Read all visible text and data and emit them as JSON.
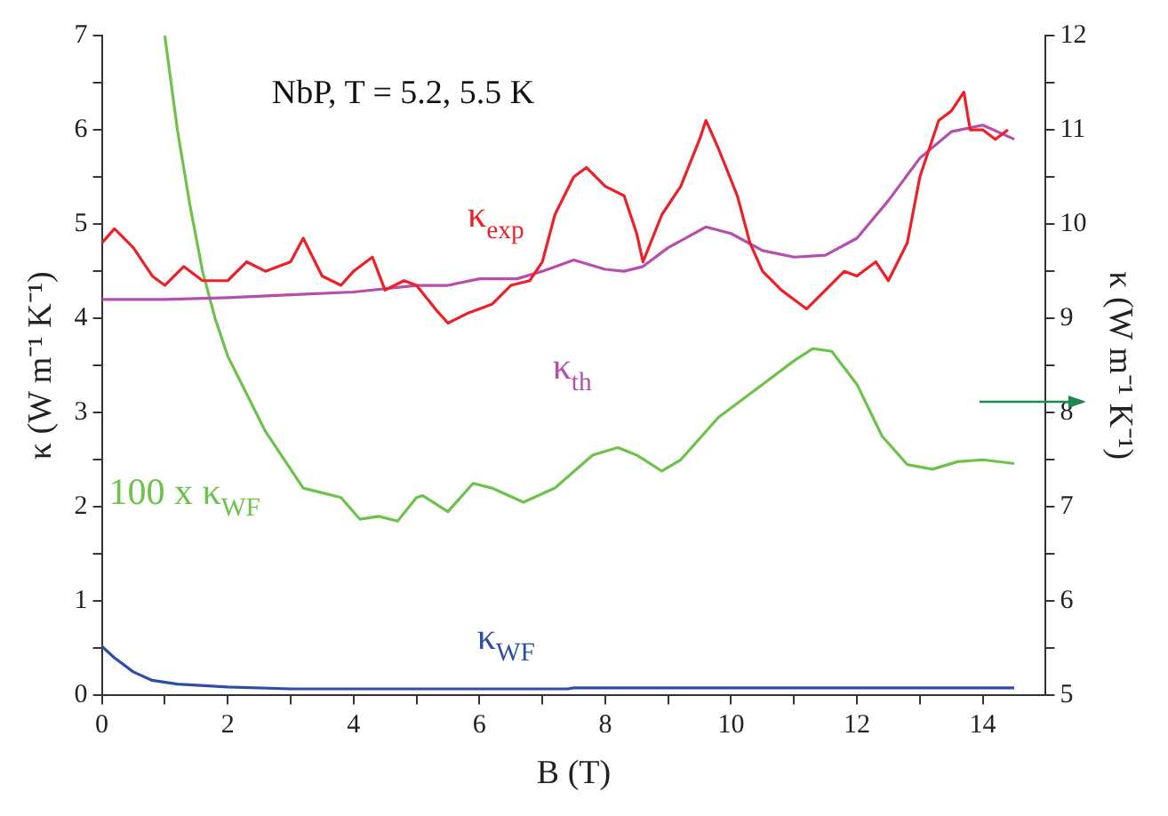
{
  "chart_data": {
    "type": "line",
    "title": "NbP, T = 5.2, 5.5 K",
    "xlabel": "B (T)",
    "ylabel": "κ (W m⁻¹ K⁻¹)",
    "y2label": "κ (W m⁻¹ K⁻¹)",
    "xlim": [
      0,
      15
    ],
    "xticks": [
      0,
      {
        "value": 1,
        "label": null
      },
      2,
      {
        "value": 3,
        "label": null
      },
      4,
      {
        "value": 5,
        "label": null
      },
      6,
      {
        "value": 7,
        "label": null
      },
      8,
      {
        "value": 9,
        "label": null
      },
      10,
      {
        "value": 11,
        "label": null
      },
      12,
      {
        "value": 13,
        "label": null
      },
      14
    ],
    "ylim": [
      0,
      7
    ],
    "yticks": [
      0,
      {
        "value": 0.5,
        "label": null
      },
      1,
      {
        "value": 1.5,
        "label": null
      },
      2,
      {
        "value": 2.5,
        "label": null
      },
      3,
      {
        "value": 3.5,
        "label": null
      },
      4,
      {
        "value": 4.5,
        "label": null
      },
      5,
      {
        "value": 5.5,
        "label": null
      },
      6,
      {
        "value": 6.5,
        "label": null
      },
      7
    ],
    "y2lim": [
      5,
      12
    ],
    "y2ticks": [
      5,
      {
        "value": 5.5,
        "label": null
      },
      6,
      {
        "value": 6.5,
        "label": null
      },
      7,
      {
        "value": 7.5,
        "label": null
      },
      8,
      {
        "value": 8.5,
        "label": null
      },
      9,
      {
        "value": 9.5,
        "label": null
      },
      10,
      {
        "value": 10.5,
        "label": null
      },
      11,
      {
        "value": 11.5,
        "label": null
      },
      12
    ],
    "grid": false,
    "legend": false,
    "marker": "none",
    "line_style": "solid",
    "series": [
      {
        "name": "κ$_{exp}$",
        "color": "#ee2027",
        "x": [
          0,
          0.2,
          0.5,
          0.8,
          1.0,
          1.3,
          1.6,
          2.0,
          2.3,
          2.6,
          3.0,
          3.2,
          3.5,
          3.8,
          4.0,
          4.3,
          4.5,
          4.8,
          5.0,
          5.3,
          5.5,
          5.8,
          6.2,
          6.5,
          6.8,
          7.0,
          7.2,
          7.5,
          7.7,
          8.0,
          8.3,
          8.5,
          8.6,
          8.9,
          9.2,
          9.5,
          9.6,
          9.8,
          10.1,
          10.3,
          10.5,
          10.8,
          11.0,
          11.2,
          11.5,
          11.8,
          12.0,
          12.3,
          12.5,
          12.8,
          13.0,
          13.3,
          13.5,
          13.7,
          13.8,
          14.0,
          14.2,
          14.4
        ],
        "values": [
          4.8,
          4.95,
          4.75,
          4.45,
          4.35,
          4.55,
          4.4,
          4.4,
          4.6,
          4.5,
          4.6,
          4.85,
          4.45,
          4.35,
          4.5,
          4.65,
          4.3,
          4.4,
          4.35,
          4.1,
          3.95,
          4.05,
          4.15,
          4.35,
          4.4,
          4.6,
          5.1,
          5.5,
          5.6,
          5.4,
          5.3,
          4.9,
          4.6,
          5.1,
          5.4,
          5.9,
          6.1,
          5.8,
          5.3,
          4.8,
          4.5,
          4.3,
          4.2,
          4.1,
          4.3,
          4.5,
          4.45,
          4.6,
          4.4,
          4.8,
          5.5,
          6.1,
          6.2,
          6.4,
          6.0,
          6.0,
          5.9,
          6.0
        ]
      },
      {
        "name": "κ$_{th}$",
        "color": "#b64fac",
        "x": [
          0,
          1,
          2,
          3,
          4,
          5,
          5.5,
          6,
          6.6,
          7,
          7.5,
          8,
          8.3,
          8.6,
          9,
          9.6,
          10,
          10.5,
          11,
          11.5,
          12,
          12.5,
          13,
          13.5,
          14,
          14.5
        ],
        "values": [
          4.2,
          4.2,
          4.22,
          4.25,
          4.28,
          4.35,
          4.35,
          4.42,
          4.42,
          4.5,
          4.62,
          4.52,
          4.5,
          4.55,
          4.75,
          4.97,
          4.9,
          4.72,
          4.65,
          4.67,
          4.85,
          5.25,
          5.7,
          5.98,
          6.05,
          5.9
        ]
      },
      {
        "name": "100 x κ$_{WF}$",
        "color": "#6cc24a",
        "axis": "y2",
        "x": [
          1.0,
          1.2,
          1.4,
          1.6,
          1.8,
          2.0,
          2.3,
          2.6,
          3.0,
          3.2,
          3.5,
          3.8,
          4.1,
          4.4,
          4.7,
          5.0,
          5.1,
          5.5,
          5.9,
          6.2,
          6.7,
          7.2,
          7.8,
          8.2,
          8.5,
          8.9,
          9.2,
          9.8,
          10.5,
          11.0,
          11.3,
          11.6,
          12.0,
          12.4,
          12.8,
          13.2,
          13.6,
          14.0,
          14.5
        ],
        "values": [
          12,
          11.0,
          10.2,
          9.5,
          9.0,
          8.6,
          8.2,
          7.8,
          7.4,
          7.2,
          7.15,
          7.1,
          6.87,
          6.9,
          6.85,
          7.1,
          7.12,
          6.95,
          7.25,
          7.2,
          7.05,
          7.2,
          7.55,
          7.63,
          7.55,
          7.38,
          7.5,
          7.95,
          8.3,
          8.55,
          8.68,
          8.65,
          8.3,
          7.75,
          7.45,
          7.4,
          7.48,
          7.5,
          7.46
        ]
      },
      {
        "name": "κ$_{WF}$",
        "color": "#2e4fa3",
        "x": [
          0,
          0.2,
          0.5,
          0.8,
          1.2,
          2,
          3,
          5,
          7.4,
          7.5,
          10,
          14.5
        ],
        "values": [
          0.52,
          0.4,
          0.25,
          0.16,
          0.12,
          0.09,
          0.07,
          0.07,
          0.07,
          0.08,
          0.08,
          0.08
        ]
      }
    ]
  }
}
